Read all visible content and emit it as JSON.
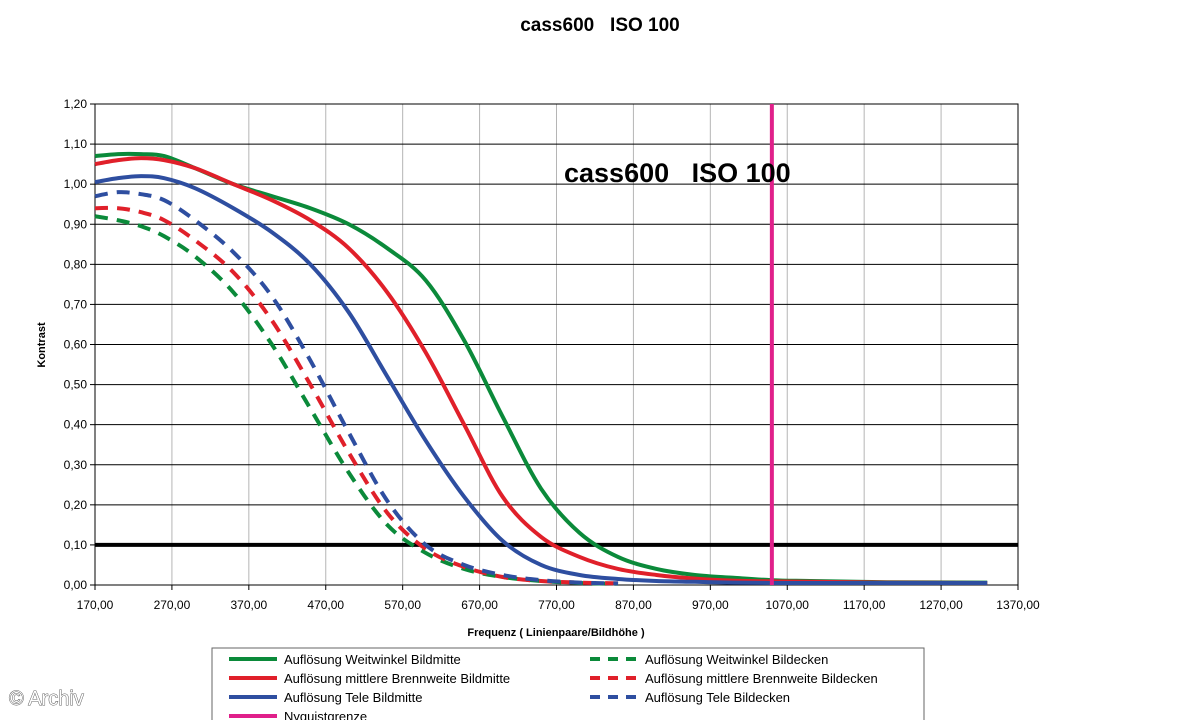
{
  "watermark": "© Archiv",
  "colors": {
    "green": "#0b8a3a",
    "red": "#e0202a",
    "blue": "#2e4ea0",
    "magenta": "#e0208a",
    "grid": "#000000"
  },
  "chart_data": {
    "type": "line",
    "title": "cass600   ISO 100",
    "inner_title": "cass600   ISO 100",
    "xlabel": "Frequenz ( Linienpaare/Bildhöhe )",
    "ylabel": "Kontrast",
    "xlim": [
      170,
      1370
    ],
    "ylim": [
      0,
      1.2
    ],
    "xticks": [
      "170,00",
      "270,00",
      "370,00",
      "470,00",
      "570,00",
      "670,00",
      "770,00",
      "870,00",
      "970,00",
      "1070,00",
      "1170,00",
      "1270,00",
      "1370,00"
    ],
    "yticks": [
      "0,00",
      "0,10",
      "0,20",
      "0,30",
      "0,40",
      "0,50",
      "0,60",
      "0,70",
      "0,80",
      "0,90",
      "1,00",
      "1,10",
      "1,20"
    ],
    "legend_position": "bottom",
    "reference_lines": {
      "threshold_y": 0.1,
      "nyquist_x": 1050
    },
    "series": [
      {
        "name": "Auflösung Weitwinkel Bildmitte",
        "color": "#0b8a3a",
        "dash": false,
        "x": [
          170,
          200,
          230,
          260,
          300,
          350,
          400,
          450,
          500,
          550,
          600,
          650,
          700,
          750,
          800,
          850,
          900,
          950,
          1000,
          1050,
          1100,
          1200,
          1330
        ],
        "y": [
          1.07,
          1.075,
          1.075,
          1.07,
          1.04,
          1.0,
          0.97,
          0.94,
          0.9,
          0.84,
          0.76,
          0.61,
          0.42,
          0.24,
          0.13,
          0.07,
          0.04,
          0.025,
          0.018,
          0.012,
          0.01,
          0.007,
          0.006
        ]
      },
      {
        "name": "Auflösung mittlere Brennweite Bildmitte",
        "color": "#e0202a",
        "dash": false,
        "x": [
          170,
          200,
          230,
          260,
          300,
          350,
          400,
          450,
          500,
          550,
          600,
          650,
          700,
          750,
          800,
          850,
          900,
          950,
          1000,
          1050,
          1100,
          1200,
          1330
        ],
        "y": [
          1.05,
          1.06,
          1.065,
          1.06,
          1.04,
          1.0,
          0.96,
          0.91,
          0.84,
          0.73,
          0.58,
          0.4,
          0.22,
          0.12,
          0.07,
          0.04,
          0.025,
          0.016,
          0.011,
          0.009,
          0.008,
          0.006,
          0.005
        ]
      },
      {
        "name": "Auflösung Tele Bildmitte",
        "color": "#2e4ea0",
        "dash": false,
        "x": [
          170,
          200,
          230,
          260,
          300,
          350,
          400,
          450,
          500,
          550,
          600,
          650,
          700,
          750,
          800,
          850,
          900,
          950,
          1000,
          1050,
          1100,
          1200,
          1330
        ],
        "y": [
          1.005,
          1.015,
          1.02,
          1.015,
          0.99,
          0.94,
          0.88,
          0.8,
          0.68,
          0.52,
          0.36,
          0.22,
          0.11,
          0.05,
          0.025,
          0.015,
          0.01,
          0.008,
          0.006,
          0.005,
          0.005,
          0.005,
          0.005
        ]
      },
      {
        "name": "Nyquistgrenze",
        "color": "#e0208a",
        "dash": false,
        "x": [
          1050,
          1050
        ],
        "y": [
          0,
          1.2
        ]
      },
      {
        "name": "Auflösung Weitwinkel Bildecken",
        "color": "#0b8a3a",
        "dash": true,
        "x": [
          170,
          200,
          230,
          260,
          300,
          350,
          400,
          450,
          500,
          550,
          600,
          650,
          700,
          750,
          800,
          850
        ],
        "y": [
          0.92,
          0.91,
          0.895,
          0.87,
          0.82,
          0.73,
          0.6,
          0.44,
          0.28,
          0.15,
          0.08,
          0.04,
          0.02,
          0.01,
          0.005,
          0.003
        ]
      },
      {
        "name": "Auflösung mittlere Brennweite Bildecken",
        "color": "#e0202a",
        "dash": true,
        "x": [
          170,
          200,
          230,
          260,
          300,
          350,
          400,
          450,
          500,
          550,
          600,
          650,
          700,
          750,
          800,
          850
        ],
        "y": [
          0.94,
          0.94,
          0.93,
          0.91,
          0.86,
          0.78,
          0.66,
          0.5,
          0.33,
          0.18,
          0.09,
          0.045,
          0.02,
          0.01,
          0.006,
          0.004
        ]
      },
      {
        "name": "Auflösung Tele Bildecken",
        "color": "#2e4ea0",
        "dash": true,
        "x": [
          170,
          200,
          230,
          260,
          300,
          350,
          400,
          450,
          500,
          550,
          600,
          650,
          700,
          750,
          800,
          850
        ],
        "y": [
          0.97,
          0.98,
          0.975,
          0.96,
          0.91,
          0.83,
          0.72,
          0.56,
          0.38,
          0.21,
          0.1,
          0.05,
          0.025,
          0.012,
          0.006,
          0.004
        ]
      }
    ]
  }
}
